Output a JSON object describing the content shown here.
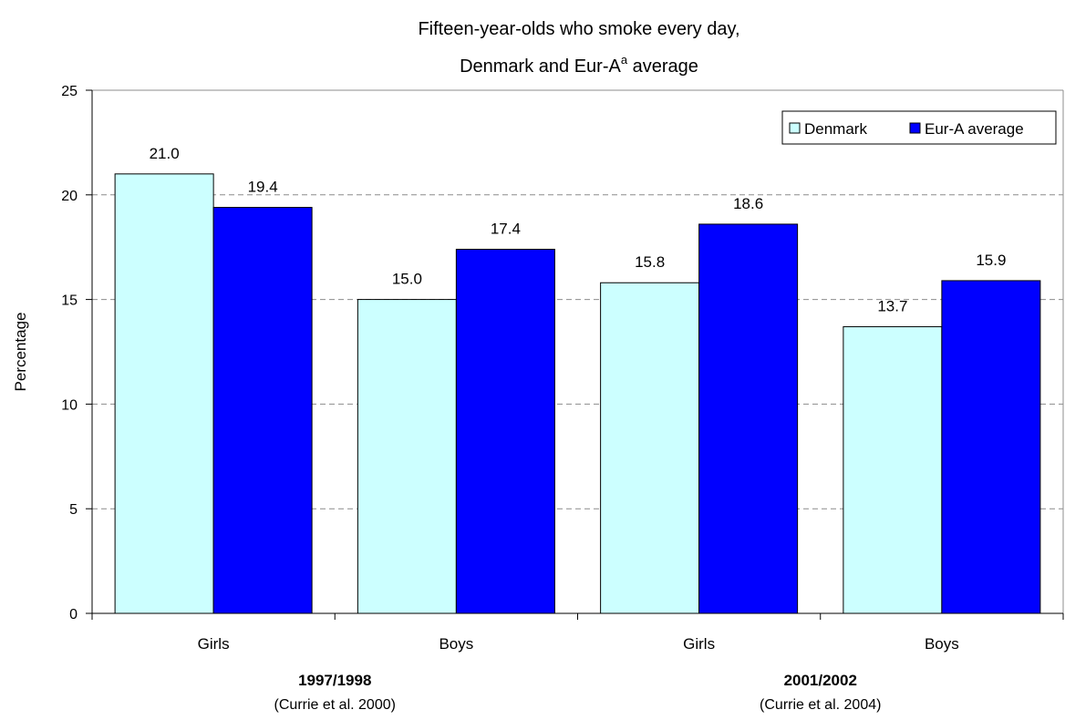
{
  "chart_data": {
    "type": "bar",
    "title_line1": "Fifteen-year-olds who smoke every day,",
    "title_line2_main": "Denmark and Eur-A",
    "title_line2_sup": "a",
    "title_line2_end": " average",
    "ylabel": "Percentage",
    "ylim": [
      0,
      25
    ],
    "yticks": [
      0,
      5,
      10,
      15,
      20,
      25
    ],
    "grid": true,
    "legend_position": "top-right",
    "categories": [
      "Girls",
      "Boys",
      "Girls",
      "Boys"
    ],
    "groups": [
      {
        "label": "1997/1998",
        "source": "(Currie et al. 2000)"
      },
      {
        "label": "2001/2002",
        "source": "(Currie et al. 2004)"
      }
    ],
    "series": [
      {
        "name": "Denmark",
        "color": "#ccffff",
        "values": [
          21.0,
          15.0,
          15.8,
          13.7
        ]
      },
      {
        "name": "Eur-A average",
        "color": "#0000ff",
        "values": [
          19.4,
          17.4,
          18.6,
          15.9
        ]
      }
    ]
  }
}
